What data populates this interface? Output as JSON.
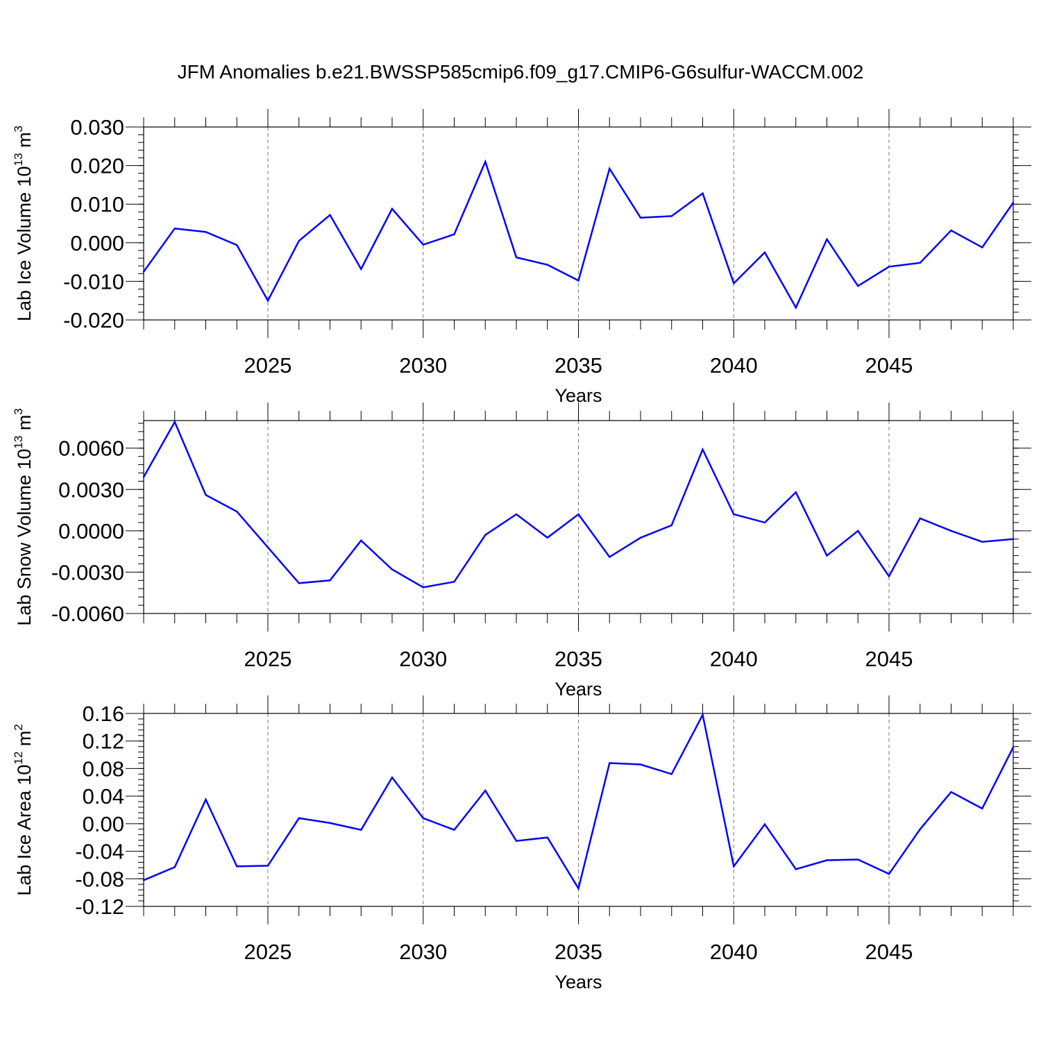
{
  "title": "JFM Anomalies b.e21.BWSSP585cmip6.f09_g17.CMIP6-G6sulfur-WACCM.002",
  "colors": {
    "line": "#0000ff",
    "axis": "#000000",
    "grid": "#777777"
  },
  "chart_data": [
    {
      "type": "line",
      "ylabel": "Lab Ice Volume",
      "yunit_base": "10",
      "yunit_exp": "13",
      "yunit_unit": "m",
      "yunit_unit_exp": "3",
      "xlabel": "Years",
      "xlim": [
        2021,
        2049
      ],
      "ylim": [
        -0.02,
        0.03
      ],
      "yticks": [
        -0.02,
        -0.01,
        0.0,
        0.01,
        0.02,
        0.03
      ],
      "yticklabels": [
        "-0.020",
        "-0.010",
        "0.000",
        "0.010",
        "0.020",
        "0.030"
      ],
      "xticks": [
        2025,
        2030,
        2035,
        2040,
        2045
      ],
      "xticklabels": [
        "2025",
        "2030",
        "2035",
        "2040",
        "2045"
      ],
      "x": [
        2021,
        2022,
        2023,
        2024,
        2025,
        2026,
        2027,
        2028,
        2029,
        2030,
        2031,
        2032,
        2033,
        2034,
        2035,
        2036,
        2037,
        2038,
        2039,
        2040,
        2041,
        2042,
        2043,
        2044,
        2045,
        2046,
        2047,
        2048,
        2049
      ],
      "values": [
        -0.0075,
        0.0037,
        0.0028,
        -0.0006,
        -0.015,
        0.0005,
        0.0072,
        -0.0068,
        0.0088,
        -0.0005,
        0.0022,
        0.021,
        -0.0038,
        -0.0057,
        -0.0098,
        0.0192,
        0.0065,
        0.0069,
        0.0128,
        -0.0105,
        -0.0025,
        -0.0168,
        0.0009,
        -0.0112,
        -0.0062,
        -0.0052,
        0.0032,
        -0.0012,
        0.0104
      ]
    },
    {
      "type": "line",
      "ylabel": "Lab Snow Volume",
      "yunit_base": "10",
      "yunit_exp": "13",
      "yunit_unit": "m",
      "yunit_unit_exp": "3",
      "xlabel": "Years",
      "xlim": [
        2021,
        2049
      ],
      "ylim": [
        -0.006,
        0.008
      ],
      "yticks": [
        -0.006,
        -0.003,
        0.0,
        0.003,
        0.006
      ],
      "yticklabels": [
        "-0.0060",
        "-0.0030",
        "0.0000",
        "0.0030",
        "0.0060"
      ],
      "xticks": [
        2025,
        2030,
        2035,
        2040,
        2045
      ],
      "xticklabels": [
        "2025",
        "2030",
        "2035",
        "2040",
        "2045"
      ],
      "x": [
        2021,
        2022,
        2023,
        2024,
        2025,
        2026,
        2027,
        2028,
        2029,
        2030,
        2031,
        2032,
        2033,
        2034,
        2035,
        2036,
        2037,
        2038,
        2039,
        2040,
        2041,
        2042,
        2043,
        2044,
        2045,
        2046,
        2047,
        2048,
        2049
      ],
      "values": [
        0.0039,
        0.0079,
        0.0026,
        0.0014,
        -0.0012,
        -0.0038,
        -0.0036,
        -0.0007,
        -0.0028,
        -0.0041,
        -0.0037,
        -0.0003,
        0.0012,
        -0.0005,
        0.0012,
        -0.0019,
        -0.0005,
        0.0004,
        0.0059,
        0.0012,
        0.0006,
        0.0028,
        -0.0018,
        0.0,
        -0.0033,
        0.0009,
        0.0,
        -0.0008,
        -0.0006
      ]
    },
    {
      "type": "line",
      "ylabel": "Lab Ice Area",
      "yunit_base": "10",
      "yunit_exp": "12",
      "yunit_unit": "m",
      "yunit_unit_exp": "2",
      "xlabel": "Years",
      "xlim": [
        2021,
        2049
      ],
      "ylim": [
        -0.12,
        0.16
      ],
      "yticks": [
        -0.12,
        -0.08,
        -0.04,
        0.0,
        0.04,
        0.08,
        0.12,
        0.16
      ],
      "yticklabels": [
        "-0.12",
        "-0.08",
        "-0.04",
        "0.00",
        "0.04",
        "0.08",
        "0.12",
        "0.16"
      ],
      "xticks": [
        2025,
        2030,
        2035,
        2040,
        2045
      ],
      "xticklabels": [
        "2025",
        "2030",
        "2035",
        "2040",
        "2045"
      ],
      "x": [
        2021,
        2022,
        2023,
        2024,
        2025,
        2026,
        2027,
        2028,
        2029,
        2030,
        2031,
        2032,
        2033,
        2034,
        2035,
        2036,
        2037,
        2038,
        2039,
        2040,
        2041,
        2042,
        2043,
        2044,
        2045,
        2046,
        2047,
        2048,
        2049
      ],
      "values": [
        -0.082,
        -0.063,
        0.035,
        -0.062,
        -0.061,
        0.008,
        0.001,
        -0.009,
        0.067,
        0.008,
        -0.009,
        0.048,
        -0.025,
        -0.02,
        -0.094,
        0.088,
        0.086,
        0.072,
        0.158,
        -0.062,
        -0.001,
        -0.066,
        -0.053,
        -0.052,
        -0.073,
        -0.008,
        0.046,
        0.022,
        0.111
      ]
    }
  ]
}
